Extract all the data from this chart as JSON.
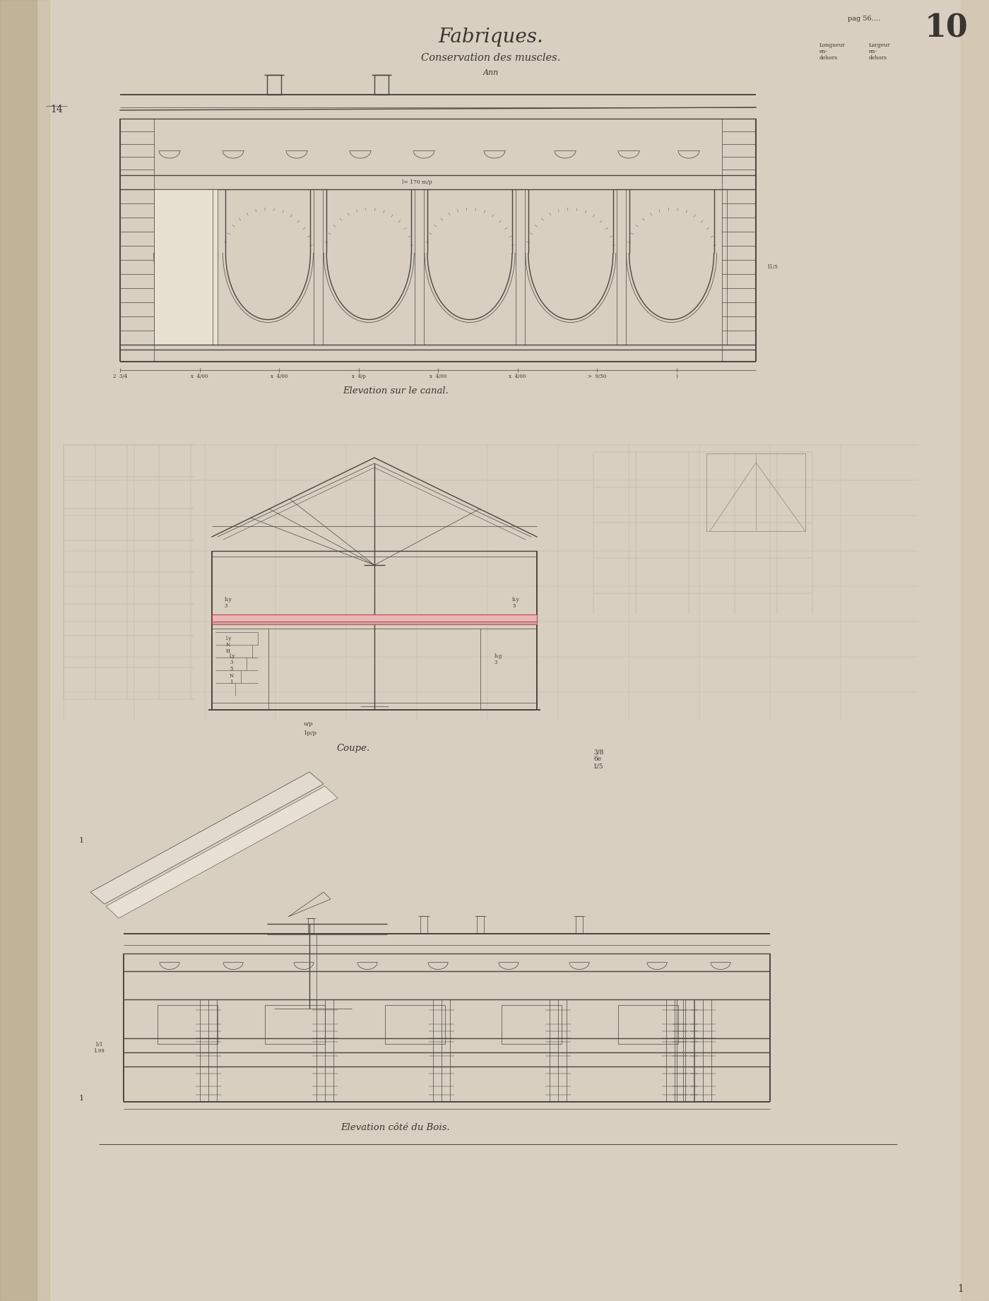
{
  "bg_color": "#d8cfc0",
  "paper_color": "#f2ece0",
  "line_color": "#4a4540",
  "title": "Fabriques.",
  "subtitle": "Conservation des muscles.",
  "subtitle2": "Ann",
  "label1": "Elevation sur le canal.",
  "label2": "Coupe.",
  "label3": "Elevation côté du Bois.",
  "page_number": "10",
  "page_ref": "pag 56....",
  "ink_color": "#3a3530",
  "red_color": "#c04040",
  "light_red": "#e8b0b0",
  "lw_main": 1.0,
  "lw_thin": 0.5,
  "lw_thick": 1.4
}
